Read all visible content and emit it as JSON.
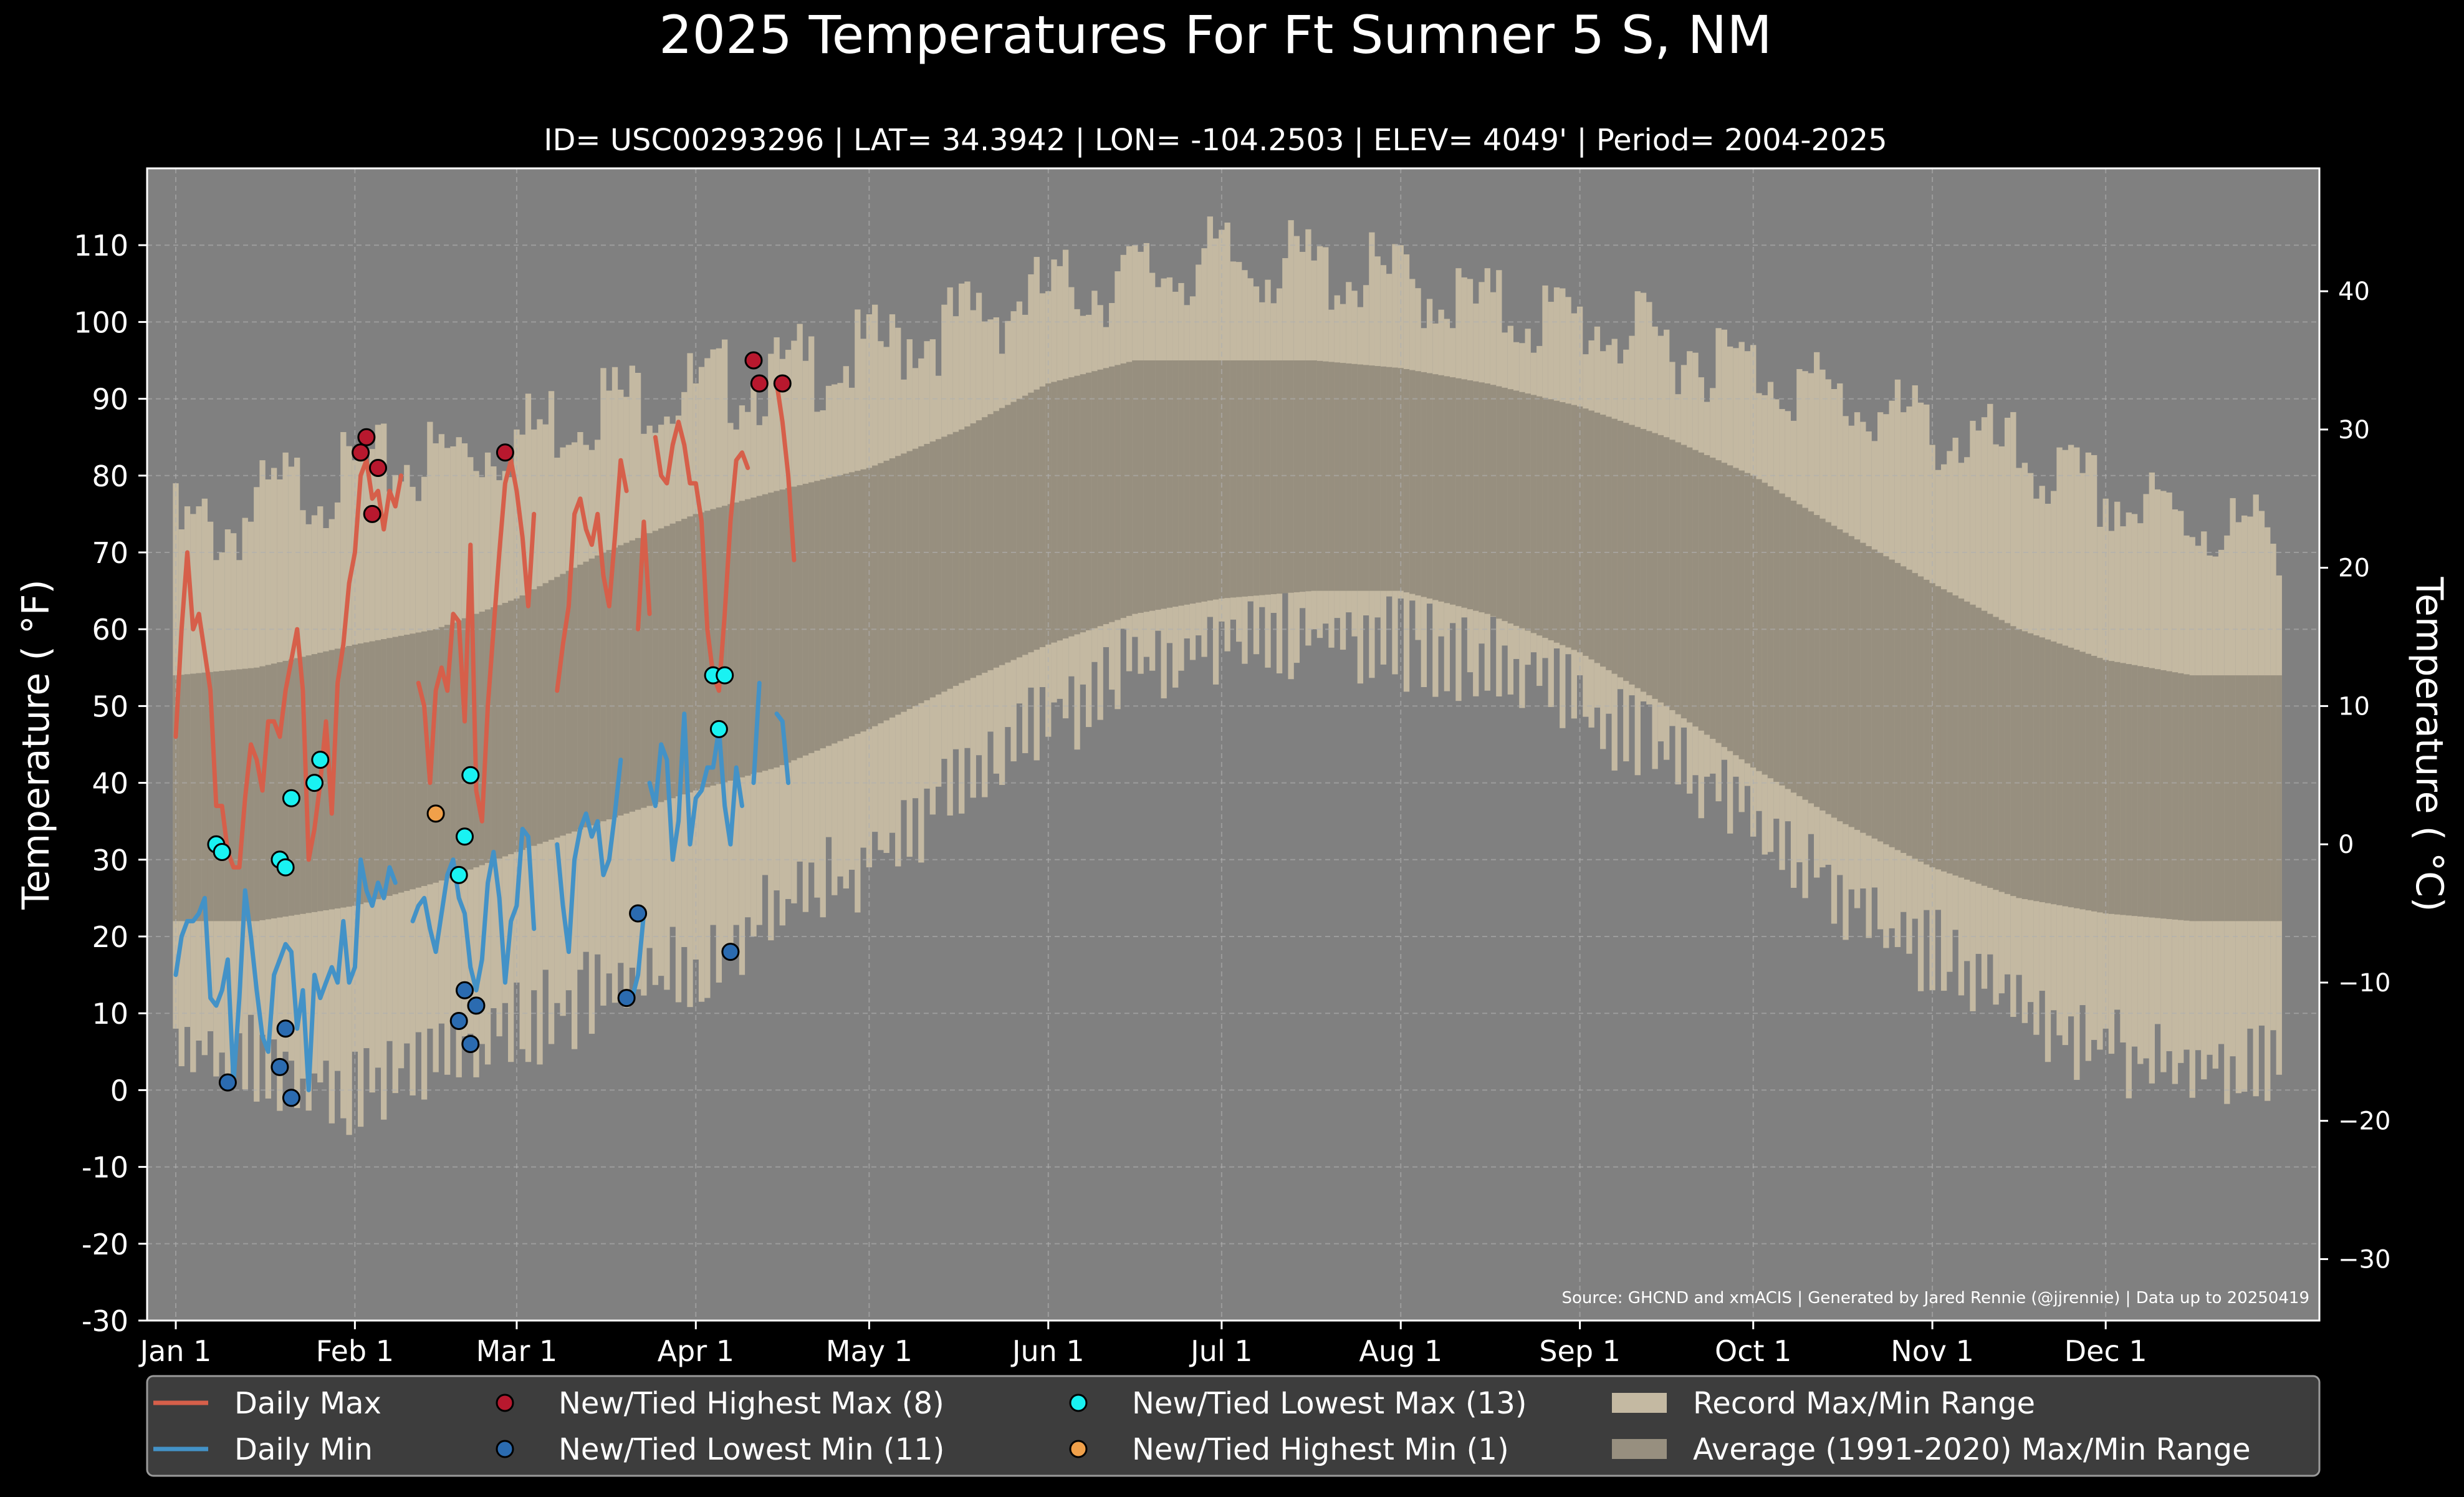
{
  "chart_data": {
    "type": "area",
    "title": "2025 Temperatures For Ft Sumner 5 S, NM",
    "subtitle": "ID= USC00293296 | LAT= 34.3942 | LON= -104.2503 | ELEV= 4049' | Period= 2004-2025",
    "ylabel": "Temperature ($^\\circ$F)",
    "ylabel_display": "Temperature ( °F)",
    "y2label_display": "Temperature ( °C)",
    "ylim": [
      -30,
      120
    ],
    "yticks": [
      -30,
      -20,
      -10,
      0,
      10,
      20,
      30,
      40,
      50,
      60,
      70,
      80,
      90,
      100,
      110
    ],
    "ytick_labels": [
      "-30",
      "-20",
      "-10",
      "0",
      "10",
      "20",
      "30",
      "40",
      "50",
      "60",
      "70",
      "80",
      "90",
      "100",
      "110"
    ],
    "y2ticks": [
      -30,
      -20,
      -10,
      0,
      10,
      20,
      30,
      40
    ],
    "y2tick_labels": [
      "−30",
      "−20",
      "−10",
      "0",
      "10",
      "20",
      "30",
      "40"
    ],
    "xlim": [
      0,
      365
    ],
    "xticks": [
      1,
      32,
      60,
      91,
      121,
      152,
      182,
      213,
      244,
      274,
      305,
      335
    ],
    "xtick_labels": [
      "Jan 1",
      "Feb 1",
      "Mar 1",
      "Apr 1",
      "May 1",
      "Jun 1",
      "Jul 1",
      "Aug 1",
      "Sep 1",
      "Oct 1",
      "Nov 1",
      "Dec 1"
    ],
    "grid": true,
    "source_text": "Source: GHCND and xmACIS | Generated by Jared Rennie (@jjrennie) | Data up to 20250419",
    "colors": {
      "background": "#000000",
      "plot_background": "#808080",
      "record_range": "#c4b9a2",
      "average_range": "#978f7f",
      "daily_max": "#d65f4a",
      "daily_min": "#4392c7",
      "highest_max": "#b8182e",
      "lowest_min": "#2b6bb0",
      "lowest_max": "#19f2f2",
      "highest_min": "#f0a04a",
      "legend_background": "#3d3d3d"
    },
    "legend_position": "bottom",
    "legend": [
      {
        "label": "Daily Max",
        "kind": "line",
        "color": "#d65f4a"
      },
      {
        "label": "Daily Min",
        "kind": "line",
        "color": "#4392c7"
      },
      {
        "label": "New/Tied Highest Max (8)",
        "kind": "dot",
        "color": "#b8182e"
      },
      {
        "label": "New/Tied Lowest Min (11)",
        "kind": "dot",
        "color": "#2b6bb0"
      },
      {
        "label": "New/Tied Lowest Max (13)",
        "kind": "dot",
        "color": "#19f2f2"
      },
      {
        "label": "New/Tied Highest Min (1)",
        "kind": "dot",
        "color": "#f0a04a"
      },
      {
        "label": "Record Max/Min Range",
        "kind": "patch",
        "color": "#c4b9a2"
      },
      {
        "label": "Average (1991-2020) Max/Min Range",
        "kind": "patch",
        "color": "#978f7f"
      }
    ],
    "record_range": {
      "x": [
        1,
        10,
        20,
        32,
        45,
        60,
        75,
        91,
        105,
        121,
        137,
        152,
        167,
        182,
        198,
        213,
        228,
        244,
        259,
        274,
        289,
        305,
        320,
        335,
        350,
        365
      ],
      "max": [
        73,
        73,
        78,
        80,
        82,
        85,
        90,
        91,
        93,
        96,
        100,
        104,
        106,
        108,
        107,
        105,
        102,
        100,
        97,
        94,
        90,
        86,
        82,
        77,
        74,
        72
      ],
      "min": [
        4,
        5,
        2,
        0,
        3,
        8,
        13,
        16,
        23,
        30,
        40,
        48,
        55,
        58,
        60,
        58,
        56,
        50,
        44,
        35,
        25,
        18,
        10,
        6,
        2,
        5
      ]
    },
    "average_range": {
      "x": [
        1,
        15,
        32,
        46,
        60,
        75,
        91,
        105,
        121,
        137,
        152,
        167,
        182,
        198,
        213,
        228,
        244,
        259,
        274,
        289,
        305,
        320,
        335,
        350,
        365
      ],
      "max": [
        54,
        55,
        58,
        60,
        64,
        70,
        75,
        78,
        81,
        86,
        92,
        95,
        95,
        95,
        94,
        92,
        89,
        85,
        80,
        73,
        66,
        60,
        56,
        54,
        54
      ],
      "min": [
        22,
        22,
        24,
        27,
        31,
        35,
        39,
        42,
        47,
        53,
        58,
        62,
        64,
        65,
        65,
        62,
        57,
        50,
        42,
        35,
        29,
        25,
        23,
        22,
        22
      ]
    },
    "series": [
      {
        "name": "Daily Max",
        "segments": [
          [
            [
              1,
              46
            ],
            [
              2,
              60
            ],
            [
              3,
              70
            ],
            [
              4,
              60
            ],
            [
              5,
              62
            ],
            [
              6,
              57
            ],
            [
              7,
              52
            ],
            [
              8,
              37
            ],
            [
              9,
              37
            ],
            [
              10,
              31
            ],
            [
              11,
              29
            ],
            [
              12,
              29
            ],
            [
              13,
              38
            ],
            [
              14,
              45
            ],
            [
              15,
              43
            ],
            [
              16,
              39
            ],
            [
              17,
              48
            ],
            [
              18,
              48
            ],
            [
              19,
              46
            ],
            [
              20,
              52
            ],
            [
              21,
              56
            ],
            [
              22,
              60
            ],
            [
              23,
              52
            ],
            [
              24,
              30
            ],
            [
              25,
              34
            ],
            [
              26,
              40
            ],
            [
              27,
              48
            ],
            [
              28,
              36
            ],
            [
              29,
              53
            ],
            [
              30,
              58
            ],
            [
              31,
              66
            ],
            [
              32,
              70
            ],
            [
              33,
              80
            ],
            [
              34,
              82
            ],
            [
              35,
              77
            ],
            [
              36,
              78
            ],
            [
              37,
              73
            ],
            [
              38,
              78
            ],
            [
              39,
              76
            ],
            [
              40,
              80
            ]
          ],
          [
            [
              43,
              53
            ],
            [
              44,
              50
            ],
            [
              45,
              40
            ],
            [
              46,
              52
            ],
            [
              47,
              55
            ],
            [
              48,
              52
            ],
            [
              49,
              62
            ],
            [
              50,
              61
            ],
            [
              51,
              48
            ],
            [
              52,
              71
            ],
            [
              53,
              39
            ],
            [
              54,
              35
            ],
            [
              55,
              50
            ],
            [
              56,
              60
            ],
            [
              57,
              70
            ],
            [
              58,
              79
            ],
            [
              59,
              82
            ],
            [
              60,
              78
            ],
            [
              61,
              72
            ],
            [
              62,
              63
            ],
            [
              63,
              75
            ]
          ],
          [
            [
              67,
              52
            ],
            [
              68,
              58
            ],
            [
              69,
              63
            ],
            [
              70,
              75
            ],
            [
              71,
              77
            ],
            [
              72,
              73
            ],
            [
              73,
              71
            ],
            [
              74,
              75
            ],
            [
              75,
              67
            ],
            [
              76,
              63
            ],
            [
              77,
              72
            ],
            [
              78,
              82
            ],
            [
              79,
              78
            ]
          ],
          [
            [
              81,
              60
            ],
            [
              82,
              74
            ],
            [
              83,
              62
            ]
          ],
          [
            [
              84,
              85
            ],
            [
              85,
              80
            ],
            [
              86,
              79
            ],
            [
              87,
              84
            ],
            [
              88,
              87
            ],
            [
              89,
              84
            ],
            [
              90,
              79
            ],
            [
              91,
              79
            ],
            [
              92,
              74
            ],
            [
              93,
              60
            ],
            [
              94,
              54
            ],
            [
              95,
              52
            ],
            [
              96,
              62
            ],
            [
              97,
              74
            ],
            [
              98,
              82
            ],
            [
              99,
              83
            ],
            [
              100,
              81
            ]
          ],
          [
            [
              105,
              92
            ],
            [
              106,
              87
            ],
            [
              107,
              80
            ],
            [
              108,
              69
            ]
          ]
        ]
      },
      {
        "name": "Daily Min",
        "segments": [
          [
            [
              1,
              15
            ],
            [
              2,
              20
            ],
            [
              3,
              22
            ],
            [
              4,
              22
            ],
            [
              5,
              23
            ],
            [
              6,
              25
            ],
            [
              7,
              12
            ],
            [
              8,
              11
            ],
            [
              9,
              13
            ],
            [
              10,
              17
            ],
            [
              11,
              1
            ],
            [
              12,
              12
            ],
            [
              13,
              26
            ],
            [
              14,
              20
            ],
            [
              15,
              13
            ],
            [
              16,
              7
            ],
            [
              17,
              5
            ],
            [
              18,
              15
            ],
            [
              19,
              17
            ],
            [
              20,
              19
            ],
            [
              21,
              18
            ],
            [
              22,
              8
            ],
            [
              23,
              13
            ],
            [
              24,
              0
            ],
            [
              25,
              15
            ],
            [
              26,
              12
            ],
            [
              27,
              14
            ],
            [
              28,
              16
            ],
            [
              29,
              14
            ],
            [
              30,
              22
            ],
            [
              31,
              14
            ],
            [
              32,
              16
            ],
            [
              33,
              30
            ],
            [
              34,
              26
            ],
            [
              35,
              24
            ],
            [
              36,
              27
            ],
            [
              37,
              25
            ],
            [
              38,
              29
            ],
            [
              39,
              27
            ]
          ],
          [
            [
              42,
              22
            ],
            [
              43,
              24
            ],
            [
              44,
              25
            ],
            [
              45,
              21
            ],
            [
              46,
              18
            ],
            [
              47,
              23
            ],
            [
              48,
              28
            ],
            [
              49,
              30
            ],
            [
              50,
              25
            ],
            [
              51,
              23
            ],
            [
              52,
              16
            ],
            [
              53,
              13
            ],
            [
              54,
              17
            ],
            [
              55,
              27
            ],
            [
              56,
              31
            ],
            [
              57,
              25
            ],
            [
              58,
              14
            ],
            [
              59,
              22
            ],
            [
              60,
              24
            ],
            [
              61,
              34
            ],
            [
              62,
              33
            ],
            [
              63,
              21
            ]
          ],
          [
            [
              67,
              32
            ],
            [
              68,
              24
            ],
            [
              69,
              18
            ],
            [
              70,
              30
            ],
            [
              71,
              34
            ],
            [
              72,
              36
            ],
            [
              73,
              33
            ],
            [
              74,
              35
            ],
            [
              75,
              28
            ],
            [
              76,
              30
            ],
            [
              77,
              36
            ],
            [
              78,
              43
            ]
          ],
          [
            [
              80,
              12
            ],
            [
              81,
              15
            ],
            [
              82,
              23
            ]
          ],
          [
            [
              83,
              40
            ],
            [
              84,
              37
            ],
            [
              85,
              45
            ],
            [
              86,
              43
            ],
            [
              87,
              30
            ],
            [
              88,
              35
            ],
            [
              89,
              49
            ],
            [
              90,
              32
            ],
            [
              91,
              38
            ],
            [
              92,
              39
            ],
            [
              93,
              42
            ],
            [
              94,
              42
            ],
            [
              95,
              47
            ],
            [
              96,
              37
            ],
            [
              97,
              32
            ],
            [
              98,
              42
            ],
            [
              99,
              37
            ]
          ],
          [
            [
              101,
              40
            ],
            [
              102,
              53
            ]
          ],
          [
            [
              105,
              49
            ],
            [
              106,
              48
            ],
            [
              107,
              40
            ]
          ]
        ]
      }
    ],
    "highest_max": [
      [
        33,
        83
      ],
      [
        34,
        85
      ],
      [
        35,
        75
      ],
      [
        36,
        81
      ],
      [
        58,
        83
      ],
      [
        101,
        95
      ],
      [
        102,
        92
      ],
      [
        106,
        92
      ]
    ],
    "lowest_min": [
      [
        10,
        1
      ],
      [
        19,
        3
      ],
      [
        20,
        8
      ],
      [
        21,
        -1
      ],
      [
        50,
        9
      ],
      [
        51,
        13
      ],
      [
        52,
        6
      ],
      [
        53,
        11
      ],
      [
        79,
        12
      ],
      [
        81,
        23
      ],
      [
        97,
        18
      ]
    ],
    "lowest_max": [
      [
        8,
        32
      ],
      [
        9,
        31
      ],
      [
        19,
        30
      ],
      [
        20,
        29
      ],
      [
        21,
        38
      ],
      [
        25,
        40
      ],
      [
        26,
        43
      ],
      [
        50,
        28
      ],
      [
        51,
        33
      ],
      [
        52,
        41
      ],
      [
        94,
        54
      ],
      [
        95,
        47
      ],
      [
        96,
        54
      ]
    ],
    "highest_min": [
      [
        46,
        36
      ]
    ]
  }
}
